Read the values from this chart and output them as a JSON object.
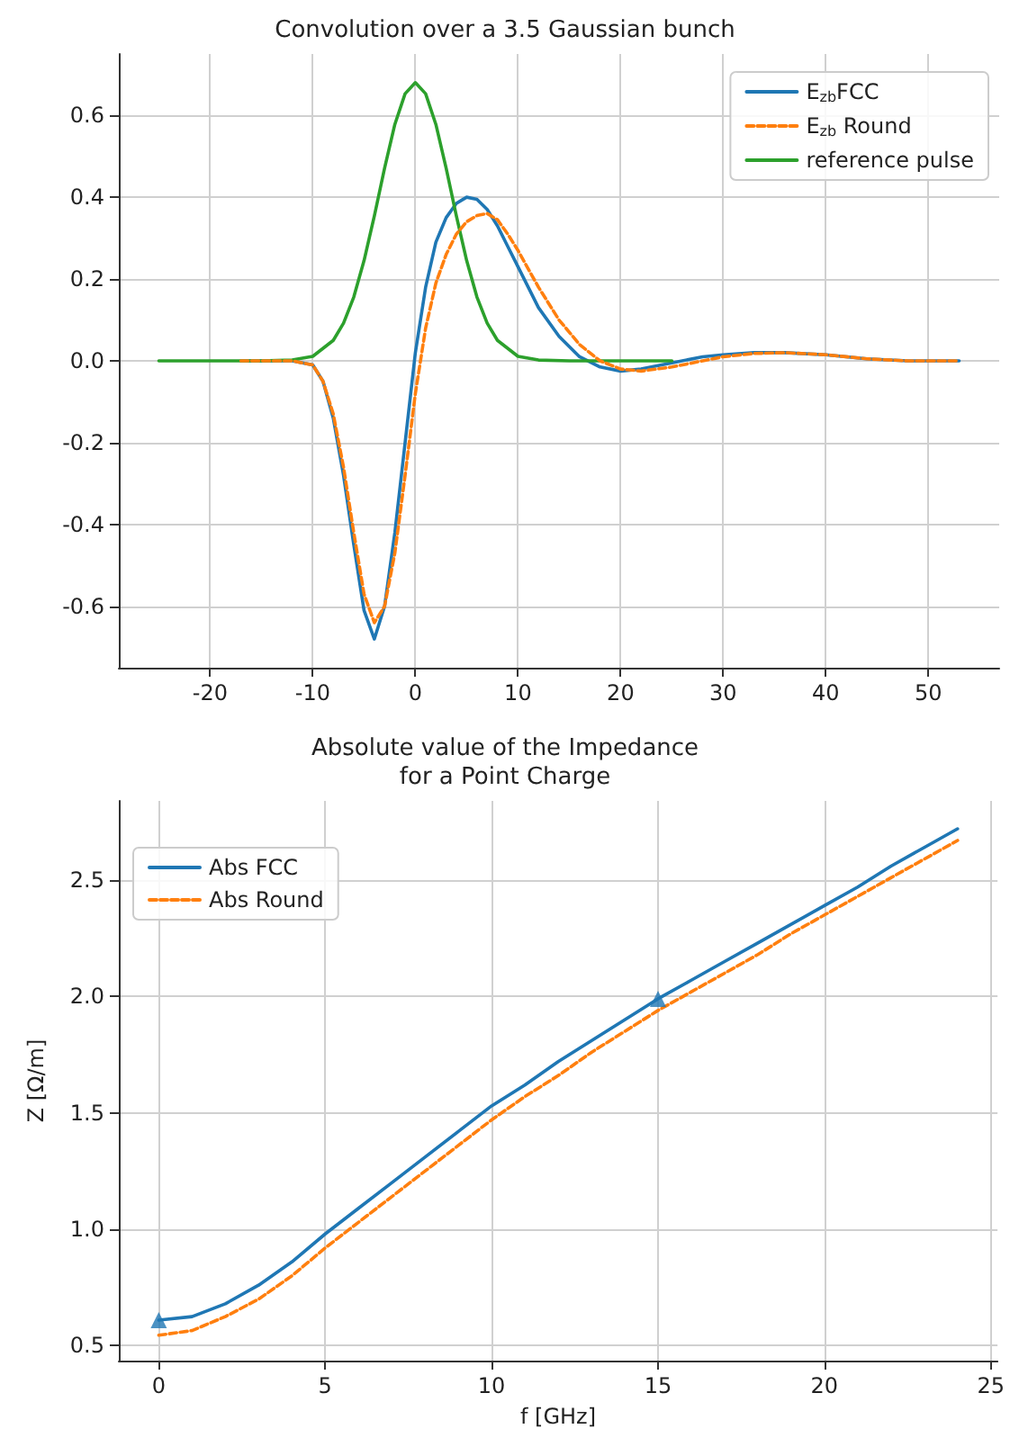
{
  "chart_data": [
    {
      "type": "line",
      "title": "Convolution over a 3.5 Gaussian bunch",
      "xlim": [
        -28.9,
        56.9
      ],
      "xticks": [
        -20,
        -10,
        0,
        10,
        20,
        30,
        40,
        50
      ],
      "ylim": [
        -0.75,
        0.75
      ],
      "yticks": [
        -0.6,
        -0.4,
        -0.2,
        {
          "value": 0,
          "label": "0.0"
        },
        0.2,
        0.4,
        0.6
      ],
      "grid": true,
      "legend": "top right",
      "series": [
        {
          "name": "E$_{zb}$FCC",
          "color": "#1f77b4",
          "line_style": "solid",
          "x": [
            -17,
            -12,
            -10,
            -9,
            -8,
            -7,
            -6,
            -5,
            -4,
            -3,
            -2,
            -1,
            0,
            1,
            2,
            3,
            4,
            5,
            6,
            7,
            8,
            9,
            10,
            12,
            14,
            16,
            18,
            20,
            22,
            25,
            28,
            30,
            33,
            36,
            40,
            44,
            48,
            53
          ],
          "values": [
            0,
            0,
            -0.01,
            -0.05,
            -0.14,
            -0.28,
            -0.45,
            -0.61,
            -0.68,
            -0.6,
            -0.42,
            -0.2,
            0.02,
            0.18,
            0.29,
            0.35,
            0.385,
            0.4,
            0.395,
            0.37,
            0.33,
            0.28,
            0.23,
            0.13,
            0.06,
            0.01,
            -0.015,
            -0.025,
            -0.02,
            -0.005,
            0.01,
            0.015,
            0.02,
            0.02,
            0.015,
            0.005,
            0,
            0
          ]
        },
        {
          "name": "E$_{zb}$ Round",
          "color": "#ff7f0e",
          "line_style": "dashed",
          "x": [
            -17,
            -12,
            -10,
            -9,
            -8,
            -7,
            -6,
            -5,
            -4,
            -3,
            -2,
            -1,
            0,
            1,
            2,
            3,
            4,
            5,
            6,
            7,
            8,
            9,
            10,
            12,
            14,
            16,
            18,
            20,
            22,
            25,
            28,
            30,
            33,
            36,
            40,
            44,
            48,
            53
          ],
          "values": [
            0,
            0,
            -0.01,
            -0.05,
            -0.13,
            -0.26,
            -0.42,
            -0.57,
            -0.64,
            -0.6,
            -0.47,
            -0.28,
            -0.08,
            0.08,
            0.19,
            0.26,
            0.31,
            0.34,
            0.355,
            0.36,
            0.345,
            0.31,
            0.27,
            0.18,
            0.1,
            0.04,
            0,
            -0.02,
            -0.025,
            -0.015,
            0,
            0.01,
            0.018,
            0.02,
            0.015,
            0.005,
            0,
            0
          ]
        },
        {
          "name": "reference pulse",
          "color": "#2ca02c",
          "line_style": "solid",
          "x": [
            -25,
            -15,
            -12,
            -10,
            -8,
            -7,
            -6,
            -5,
            -4,
            -3,
            -2,
            -1,
            0,
            1,
            2,
            3,
            4,
            5,
            6,
            7,
            8,
            10,
            12,
            15,
            25
          ],
          "values": [
            0,
            0,
            0.002,
            0.011,
            0.05,
            0.092,
            0.156,
            0.245,
            0.354,
            0.471,
            0.578,
            0.653,
            0.68,
            0.653,
            0.578,
            0.471,
            0.354,
            0.245,
            0.156,
            0.092,
            0.05,
            0.011,
            0.002,
            0,
            0
          ]
        }
      ]
    },
    {
      "type": "line",
      "title": "Absolute value of the Impedance\nfor a Point Charge",
      "xlabel": "f [GHz]",
      "ylabel": "Z [Ω/m]",
      "xlim": [
        -1.2,
        25.2
      ],
      "xticks": [
        0,
        5,
        10,
        15,
        20,
        25
      ],
      "ylim": [
        0.436,
        2.84
      ],
      "yticks": [
        0.5,
        {
          "value": 1,
          "label": "1.0"
        },
        1.5,
        {
          "value": 2,
          "label": "2.0"
        },
        2.5
      ],
      "grid": true,
      "legend": "top left",
      "series": [
        {
          "name": "Abs FCC",
          "color": "#1f77b4",
          "line_style": "solid",
          "x": [
            0,
            1,
            2,
            3,
            4,
            5,
            6,
            7,
            8,
            9,
            10,
            11,
            12,
            13,
            14,
            15,
            16,
            17,
            18,
            19,
            20,
            21,
            22,
            23,
            24
          ],
          "values": [
            0.61,
            0.625,
            0.68,
            0.76,
            0.86,
            0.98,
            1.09,
            1.2,
            1.31,
            1.42,
            1.53,
            1.62,
            1.72,
            1.81,
            1.9,
            1.99,
            2.07,
            2.15,
            2.23,
            2.31,
            2.39,
            2.47,
            2.56,
            2.64,
            2.72
          ]
        },
        {
          "name": "Abs Round",
          "color": "#ff7f0e",
          "line_style": "dashed",
          "x": [
            0,
            1,
            2,
            3,
            4,
            5,
            6,
            7,
            8,
            9,
            10,
            11,
            12,
            13,
            14,
            15,
            16,
            17,
            18,
            19,
            20,
            21,
            22,
            23,
            24
          ],
          "values": [
            0.545,
            0.565,
            0.625,
            0.7,
            0.8,
            0.92,
            1.03,
            1.14,
            1.25,
            1.36,
            1.47,
            1.57,
            1.66,
            1.76,
            1.85,
            1.94,
            2.02,
            2.1,
            2.18,
            2.27,
            2.35,
            2.43,
            2.51,
            2.59,
            2.67
          ]
        },
        {
          "type": "scatter",
          "color": "#1f77b4",
          "marker": "triangle",
          "x": [
            0,
            15
          ],
          "values": [
            0.61,
            1.99
          ]
        }
      ]
    }
  ]
}
